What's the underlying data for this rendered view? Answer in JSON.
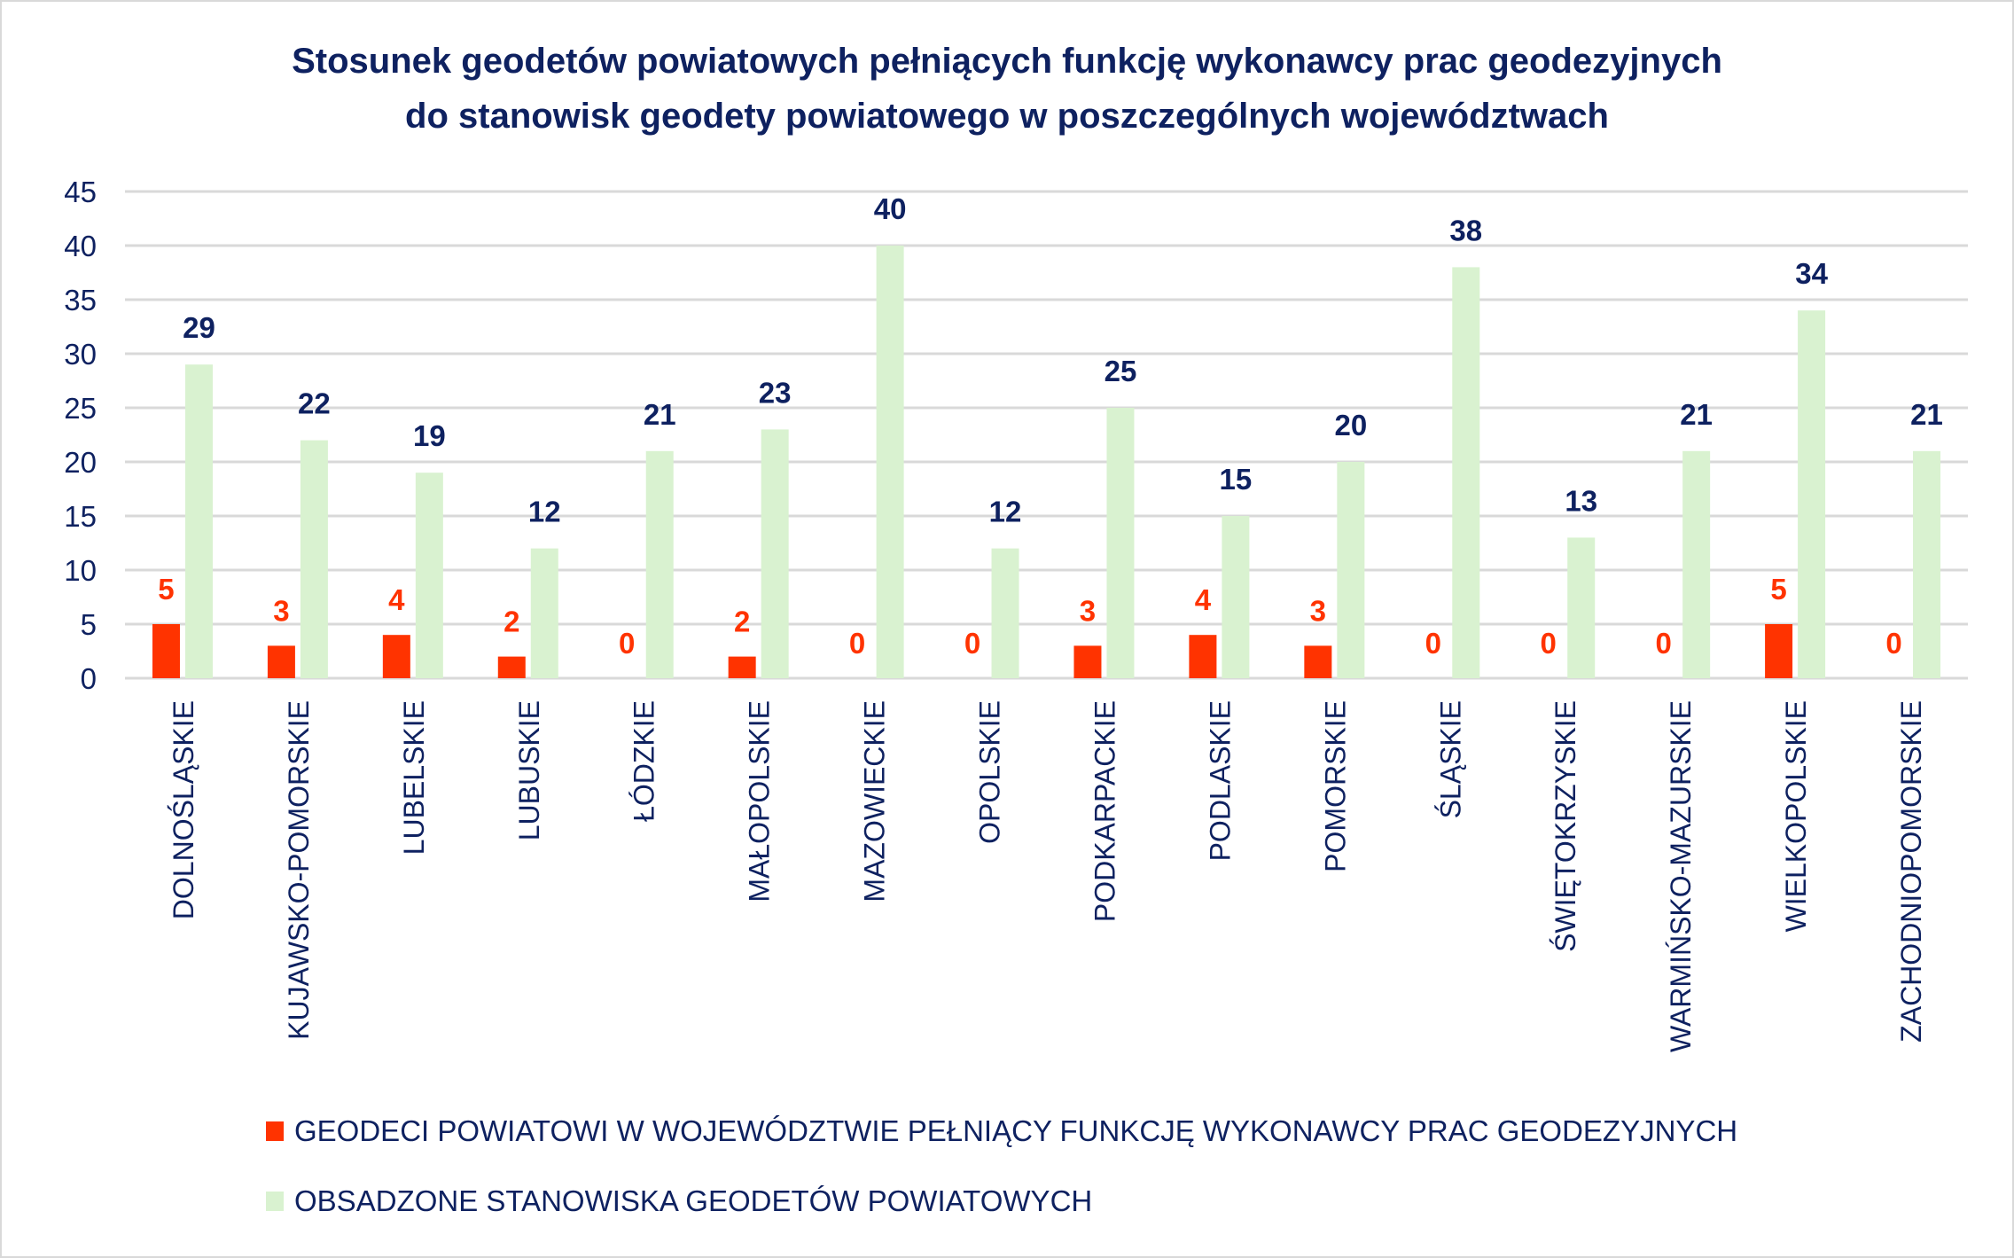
{
  "chart_data": {
    "type": "bar",
    "title": [
      "Stosunek geodetów powiatowych pełniących funkcję wykonawcy prac geodezyjnych",
      "do stanowisk geodety powiatowego w poszczególnych województwach"
    ],
    "categories": [
      "DOLNOŚLĄSKIE",
      "KUJAWSKO-POMORSKIE",
      "LUBELSKIE",
      "LUBUSKIE",
      "ŁÓDZKIE",
      "MAŁOPOLSKIE",
      "MAZOWIECKIE",
      "OPOLSKIE",
      "PODKARPACKIE",
      "PODLASKIE",
      "POMORSKIE",
      "ŚLĄSKIE",
      "ŚWIĘTOKRZYSKIE",
      "WARMIŃSKO-MAZURSKIE",
      "WIELKOPOLSKIE",
      "ZACHODNIOPOMORSKIE"
    ],
    "series": [
      {
        "name": "GEODECI POWIATOWI W WOJEWÓDZTWIE PEŁNIĄCY FUNKCJĘ WYKONAWCY PRAC GEODEZYJNYCH",
        "color": "#ff3300",
        "label_color": "#ff3300",
        "values": [
          5,
          3,
          4,
          2,
          0,
          2,
          0,
          0,
          3,
          4,
          3,
          0,
          0,
          0,
          5,
          0
        ]
      },
      {
        "name": "OBSADZONE STANOWISKA GEODETÓW POWIATOWYCH",
        "color": "#d9f2d0",
        "label_color": "#0e2160",
        "values": [
          29,
          22,
          19,
          12,
          21,
          23,
          40,
          12,
          25,
          15,
          20,
          38,
          13,
          21,
          34,
          21
        ]
      }
    ],
    "yticks": [
      0,
      5,
      10,
      15,
      20,
      25,
      30,
      35,
      40,
      45
    ],
    "ylim": [
      0,
      45
    ],
    "grid": true,
    "legend": "bottom-left",
    "xlabel": "",
    "ylabel": ""
  }
}
